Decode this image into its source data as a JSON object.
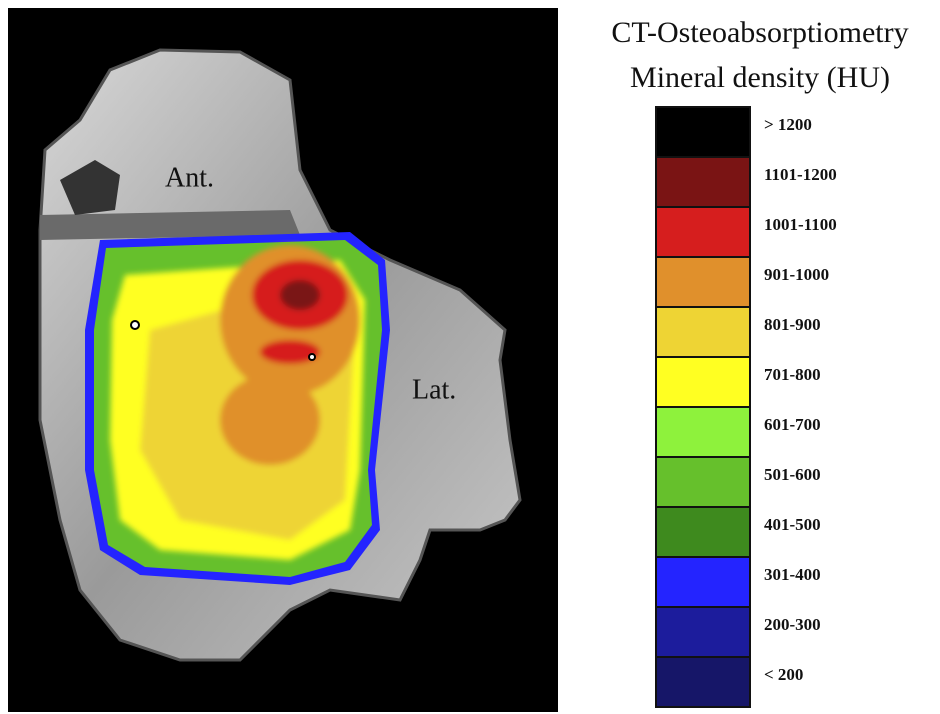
{
  "image": {
    "labels": {
      "anterior": "Ant.",
      "lateral": "Lat."
    }
  },
  "legend": {
    "title": [
      "CT-Osteoabsorptiometry",
      "Mineral density (HU)"
    ],
    "items": [
      {
        "label": "> 1200",
        "color": "#000000"
      },
      {
        "label": "1101-1200",
        "color": "#7a1414"
      },
      {
        "label": "1001-1100",
        "color": "#d61e1e"
      },
      {
        "label": "901-1000",
        "color": "#e0902c"
      },
      {
        "label": "801-900",
        "color": "#eed434"
      },
      {
        "label": "701-800",
        "color": "#ffff22"
      },
      {
        "label": "601-700",
        "color": "#8ef23c"
      },
      {
        "label": "501-600",
        "color": "#66c02c"
      },
      {
        "label": "401-500",
        "color": "#3e8a1e"
      },
      {
        "label": "301-400",
        "color": "#2424ff"
      },
      {
        "label": "200-300",
        "color": "#1c1c9c"
      },
      {
        "label": "< 200",
        "color": "#161668"
      }
    ]
  }
}
